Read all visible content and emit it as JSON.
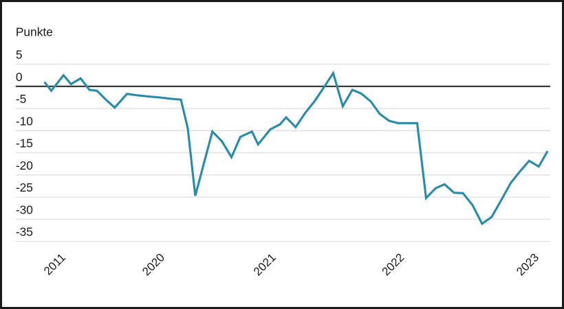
{
  "chart_data": {
    "type": "line",
    "title": "",
    "ylabel": "Punkte",
    "xlabel": "",
    "grid": true,
    "legend": "none",
    "ylim": [
      -37,
      7
    ],
    "y_ticks": [
      5,
      0,
      -5,
      -10,
      -15,
      -20,
      -25,
      -30,
      -35
    ],
    "x_tick_labels": [
      "2011",
      "2020",
      "2021",
      "2022",
      "2023"
    ],
    "x_tick_pos": [
      0.1085,
      0.2854,
      0.4841,
      0.7134,
      0.9537
    ],
    "colors": {
      "line": "#2a8ca8",
      "zero_line": "#222222",
      "grid": "#e2e2e2",
      "text": "#1a1a1a",
      "frame": "#1a1a1a",
      "background": "#ffffff"
    },
    "series": [
      {
        "name": "Punkte",
        "points": [
          {
            "x": 0.0756,
            "v": 1.0
          },
          {
            "x": 0.0878,
            "v": -1.0
          },
          {
            "x": 0.1098,
            "v": 2.5
          },
          {
            "x": 0.1232,
            "v": 0.5
          },
          {
            "x": 0.1402,
            "v": 1.8
          },
          {
            "x": 0.1561,
            "v": -0.8
          },
          {
            "x": 0.1695,
            "v": -1.0
          },
          {
            "x": 0.1854,
            "v": -3.0
          },
          {
            "x": 0.2012,
            "v": -4.8
          },
          {
            "x": 0.2232,
            "v": -1.7
          },
          {
            "x": 0.2402,
            "v": -2.0
          },
          {
            "x": 0.2622,
            "v": -2.3
          },
          {
            "x": 0.2817,
            "v": -2.5
          },
          {
            "x": 0.3012,
            "v": -2.8
          },
          {
            "x": 0.3195,
            "v": -3.0
          },
          {
            "x": 0.3317,
            "v": -9.5
          },
          {
            "x": 0.3451,
            "v": -24.7
          },
          {
            "x": 0.3756,
            "v": -10.2
          },
          {
            "x": 0.3927,
            "v": -12.4
          },
          {
            "x": 0.4098,
            "v": -16.0
          },
          {
            "x": 0.4256,
            "v": -11.4
          },
          {
            "x": 0.4463,
            "v": -10.2
          },
          {
            "x": 0.4573,
            "v": -13.1
          },
          {
            "x": 0.4793,
            "v": -9.7
          },
          {
            "x": 0.4963,
            "v": -8.6
          },
          {
            "x": 0.5073,
            "v": -7.0
          },
          {
            "x": 0.5244,
            "v": -9.2
          },
          {
            "x": 0.5415,
            "v": -6.0
          },
          {
            "x": 0.5585,
            "v": -3.3
          },
          {
            "x": 0.5744,
            "v": -0.3
          },
          {
            "x": 0.5915,
            "v": 3.0
          },
          {
            "x": 0.6085,
            "v": -4.5
          },
          {
            "x": 0.6256,
            "v": -0.8
          },
          {
            "x": 0.6415,
            "v": -1.6
          },
          {
            "x": 0.6585,
            "v": -3.4
          },
          {
            "x": 0.6744,
            "v": -6.2
          },
          {
            "x": 0.6915,
            "v": -7.8
          },
          {
            "x": 0.7073,
            "v": -8.3
          },
          {
            "x": 0.7244,
            "v": -8.3
          },
          {
            "x": 0.7415,
            "v": -8.3
          },
          {
            "x": 0.7573,
            "v": -25.2
          },
          {
            "x": 0.7744,
            "v": -23.0
          },
          {
            "x": 0.7902,
            "v": -22.1
          },
          {
            "x": 0.8073,
            "v": -24.0
          },
          {
            "x": 0.8232,
            "v": -24.1
          },
          {
            "x": 0.8402,
            "v": -26.8
          },
          {
            "x": 0.8573,
            "v": -31.0
          },
          {
            "x": 0.8744,
            "v": -29.5
          },
          {
            "x": 0.8915,
            "v": -25.7
          },
          {
            "x": 0.9085,
            "v": -21.8
          },
          {
            "x": 0.9244,
            "v": -19.3
          },
          {
            "x": 0.9415,
            "v": -16.8
          },
          {
            "x": 0.9585,
            "v": -18.1
          },
          {
            "x": 0.9744,
            "v": -14.6
          }
        ]
      }
    ]
  }
}
